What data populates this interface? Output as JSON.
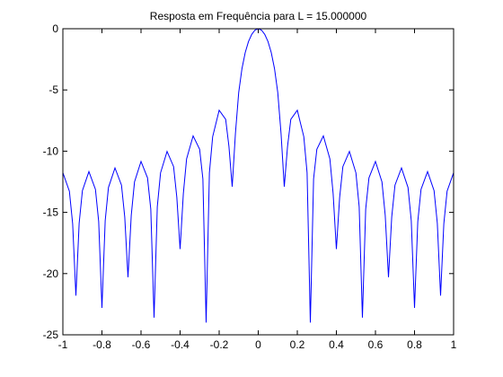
{
  "chart_data": {
    "type": "line",
    "title": "Resposta em Frequência para L = 15.000000",
    "x": [
      -1,
      -0.9667,
      -0.95,
      -0.9333,
      -0.9167,
      -0.9,
      -0.8667,
      -0.8333,
      -0.8167,
      -0.8,
      -0.7833,
      -0.7667,
      -0.7333,
      -0.7,
      -0.6833,
      -0.6667,
      -0.65,
      -0.6333,
      -0.6,
      -0.5667,
      -0.55,
      -0.5333,
      -0.5167,
      -0.5,
      -0.4667,
      -0.4333,
      -0.4167,
      -0.4,
      -0.3833,
      -0.3667,
      -0.3333,
      -0.3,
      -0.2833,
      -0.2667,
      -0.25,
      -0.2333,
      -0.2,
      -0.1667,
      -0.15,
      -0.1333,
      -0.1167,
      -0.1,
      -0.0833,
      -0.0667,
      -0.05,
      -0.0333,
      -0.0167,
      0,
      0.0167,
      0.0333,
      0.05,
      0.0667,
      0.0833,
      0.1,
      0.1167,
      0.1333,
      0.15,
      0.1667,
      0.2,
      0.2333,
      0.25,
      0.2667,
      0.2833,
      0.3,
      0.3333,
      0.3667,
      0.3833,
      0.4,
      0.4167,
      0.4333,
      0.4667,
      0.5,
      0.5167,
      0.5333,
      0.55,
      0.5667,
      0.6,
      0.6333,
      0.65,
      0.6667,
      0.6833,
      0.7,
      0.7333,
      0.7667,
      0.7833,
      0.8,
      0.8167,
      0.8333,
      0.8667,
      0.9,
      0.9167,
      0.9333,
      0.95,
      0.9667,
      1
    ],
    "values": [
      -11.76,
      -13.27,
      -15.92,
      -21.8,
      -15.89,
      -13.22,
      -11.67,
      -13.12,
      -15.75,
      -22.8,
      -15.67,
      -12.97,
      -11.37,
      -12.77,
      -15.37,
      -20.3,
      -15.24,
      -12.51,
      -10.84,
      -12.18,
      -14.74,
      -23.6,
      -14.54,
      -11.77,
      -10.02,
      -11.26,
      -13.78,
      -18,
      -13.46,
      -10.63,
      -8.75,
      -9.84,
      -12.27,
      -24,
      -11.76,
      -8.82,
      -6.66,
      -7.4,
      -9.61,
      -12.9,
      -8.54,
      -5.21,
      -3.26,
      -1.95,
      -1.05,
      -0.46,
      -0.11,
      0,
      -0.11,
      -0.46,
      -1.05,
      -1.95,
      -3.26,
      -5.21,
      -8.54,
      -12.9,
      -9.61,
      -7.4,
      -6.66,
      -8.82,
      -11.76,
      -24,
      -12.27,
      -9.84,
      -8.75,
      -10.63,
      -13.46,
      -18,
      -13.78,
      -11.26,
      -10.02,
      -11.77,
      -14.54,
      -23.6,
      -14.74,
      -12.18,
      -10.84,
      -12.51,
      -15.24,
      -20.3,
      -15.37,
      -12.77,
      -11.37,
      -12.97,
      -15.67,
      -22.8,
      -15.75,
      -13.12,
      -11.67,
      -13.22,
      -15.89,
      -21.8,
      -15.92,
      -13.27,
      -11.76
    ],
    "color": "#0000ff",
    "xlim": [
      -1,
      1
    ],
    "xticks": [
      -1,
      -0.8,
      -0.6,
      -0.4,
      -0.2,
      0,
      0.2,
      0.4,
      0.6,
      0.8,
      1
    ],
    "ylim": [
      -25,
      0
    ],
    "yticks": [
      -25,
      -20,
      -15,
      -10,
      -5,
      0
    ],
    "grid": false
  }
}
